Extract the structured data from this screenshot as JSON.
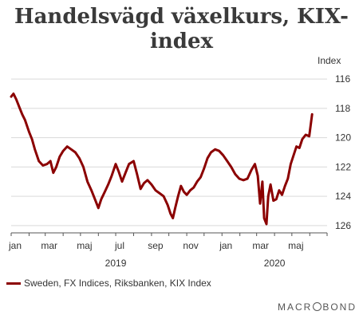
{
  "chart_data": {
    "type": "line",
    "title": "Handelsvägd växelkurs, KIX-index",
    "ylabel": "Index",
    "yaxis_inverted": true,
    "ylim": [
      126.5,
      115.5
    ],
    "y_ticks": [
      116,
      118,
      120,
      122,
      124,
      126
    ],
    "grid": true,
    "x_month_labels": [
      "jan",
      "mar",
      "maj",
      "jul",
      "sep",
      "nov",
      "jan",
      "mar",
      "maj"
    ],
    "x_year_labels": [
      "2019",
      "2020"
    ],
    "legend_position": "bottom-left",
    "series": [
      {
        "name": "Sweden, FX Indices, Riksbanken, KIX Index",
        "color": "#8b0000",
        "points": [
          [
            "2019-01-01",
            117.2
          ],
          [
            "2019-01-05",
            117.0
          ],
          [
            "2019-01-10",
            117.4
          ],
          [
            "2019-01-15",
            117.9
          ],
          [
            "2019-01-20",
            118.4
          ],
          [
            "2019-01-25",
            118.8
          ],
          [
            "2019-02-01",
            119.6
          ],
          [
            "2019-02-06",
            120.1
          ],
          [
            "2019-02-11",
            120.8
          ],
          [
            "2019-02-18",
            121.6
          ],
          [
            "2019-02-25",
            121.9
          ],
          [
            "2019-03-04",
            121.8
          ],
          [
            "2019-03-10",
            121.6
          ],
          [
            "2019-03-15",
            122.4
          ],
          [
            "2019-03-20",
            122.0
          ],
          [
            "2019-03-26",
            121.3
          ],
          [
            "2019-04-01",
            120.9
          ],
          [
            "2019-04-08",
            120.6
          ],
          [
            "2019-04-15",
            120.8
          ],
          [
            "2019-04-22",
            121.0
          ],
          [
            "2019-04-29",
            121.4
          ],
          [
            "2019-05-06",
            122.0
          ],
          [
            "2019-05-13",
            123.0
          ],
          [
            "2019-05-20",
            123.6
          ],
          [
            "2019-05-27",
            124.3
          ],
          [
            "2019-06-01",
            124.8
          ],
          [
            "2019-06-06",
            124.2
          ],
          [
            "2019-06-12",
            123.7
          ],
          [
            "2019-06-18",
            123.2
          ],
          [
            "2019-06-24",
            122.6
          ],
          [
            "2019-07-01",
            121.8
          ],
          [
            "2019-07-06",
            122.3
          ],
          [
            "2019-07-12",
            123.0
          ],
          [
            "2019-07-18",
            122.4
          ],
          [
            "2019-07-24",
            121.8
          ],
          [
            "2019-08-01",
            121.6
          ],
          [
            "2019-08-07",
            122.5
          ],
          [
            "2019-08-13",
            123.5
          ],
          [
            "2019-08-19",
            123.1
          ],
          [
            "2019-08-25",
            122.9
          ],
          [
            "2019-09-01",
            123.2
          ],
          [
            "2019-09-08",
            123.6
          ],
          [
            "2019-09-15",
            123.8
          ],
          [
            "2019-09-22",
            124.0
          ],
          [
            "2019-09-29",
            124.6
          ],
          [
            "2019-10-04",
            125.2
          ],
          [
            "2019-10-08",
            125.5
          ],
          [
            "2019-10-12",
            124.8
          ],
          [
            "2019-10-17",
            124.0
          ],
          [
            "2019-10-22",
            123.3
          ],
          [
            "2019-10-27",
            123.7
          ],
          [
            "2019-11-01",
            123.9
          ],
          [
            "2019-11-07",
            123.6
          ],
          [
            "2019-11-13",
            123.4
          ],
          [
            "2019-11-19",
            123.0
          ],
          [
            "2019-11-25",
            122.7
          ],
          [
            "2019-12-01",
            122.1
          ],
          [
            "2019-12-07",
            121.4
          ],
          [
            "2019-12-13",
            121.0
          ],
          [
            "2019-12-20",
            120.8
          ],
          [
            "2019-12-27",
            120.9
          ],
          [
            "2020-01-03",
            121.2
          ],
          [
            "2020-01-10",
            121.6
          ],
          [
            "2020-01-17",
            122.0
          ],
          [
            "2020-01-24",
            122.5
          ],
          [
            "2020-01-31",
            122.8
          ],
          [
            "2020-02-07",
            122.9
          ],
          [
            "2020-02-14",
            122.8
          ],
          [
            "2020-02-21",
            122.2
          ],
          [
            "2020-02-27",
            121.8
          ],
          [
            "2020-03-03",
            122.6
          ],
          [
            "2020-03-07",
            124.5
          ],
          [
            "2020-03-11",
            123.0
          ],
          [
            "2020-03-14",
            125.5
          ],
          [
            "2020-03-18",
            125.9
          ],
          [
            "2020-03-21",
            124.0
          ],
          [
            "2020-03-25",
            123.2
          ],
          [
            "2020-03-30",
            124.3
          ],
          [
            "2020-04-04",
            124.2
          ],
          [
            "2020-04-09",
            123.6
          ],
          [
            "2020-04-14",
            123.9
          ],
          [
            "2020-04-19",
            123.3
          ],
          [
            "2020-04-24",
            122.8
          ],
          [
            "2020-04-29",
            121.8
          ],
          [
            "2020-05-04",
            121.2
          ],
          [
            "2020-05-09",
            120.6
          ],
          [
            "2020-05-14",
            120.7
          ],
          [
            "2020-05-19",
            120.1
          ],
          [
            "2020-05-25",
            119.8
          ],
          [
            "2020-05-31",
            119.9
          ],
          [
            "2020-06-05",
            118.4
          ]
        ]
      }
    ]
  },
  "logo_text": "MACROBOND"
}
